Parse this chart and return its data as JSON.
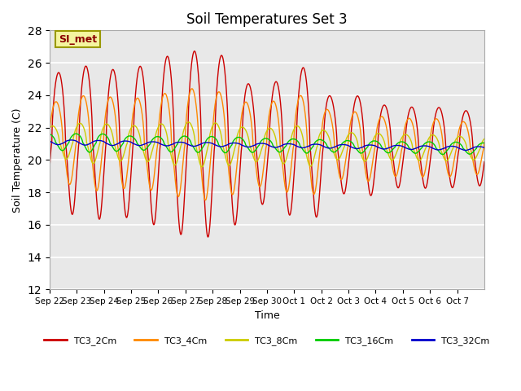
{
  "title": "Soil Temperatures Set 3",
  "xlabel": "Time",
  "ylabel": "Soil Temperature (C)",
  "ylim": [
    12,
    28
  ],
  "yticks": [
    12,
    14,
    16,
    18,
    20,
    22,
    24,
    26,
    28
  ],
  "bg_color": "#e8e8e8",
  "annotation_text": "SI_met",
  "annotation_bg": "#f5f5a0",
  "annotation_border": "#999900",
  "line_colors": {
    "TC3_2Cm": "#cc0000",
    "TC3_4Cm": "#ff8800",
    "TC3_8Cm": "#cccc00",
    "TC3_16Cm": "#00cc00",
    "TC3_32Cm": "#0000cc"
  },
  "legend_labels": [
    "TC3_2Cm",
    "TC3_4Cm",
    "TC3_8Cm",
    "TC3_16Cm",
    "TC3_32Cm"
  ],
  "xtick_labels": [
    "Sep 22",
    "Sep 23",
    "Sep 24",
    "Sep 25",
    "Sep 26",
    "Sep 27",
    "Sep 28",
    "Sep 29",
    "Sep 30",
    "Oct 1",
    "Oct 2",
    "Oct 3",
    "Oct 4",
    "Oct 5",
    "Oct 6",
    "Oct 7"
  ]
}
